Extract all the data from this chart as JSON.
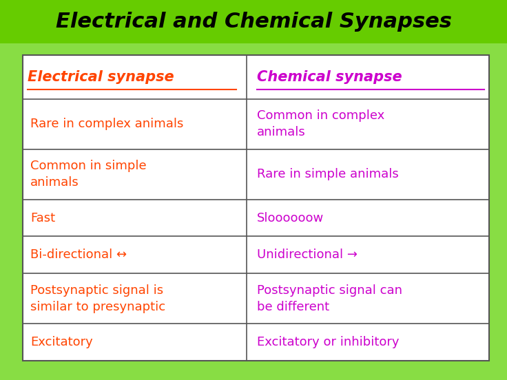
{
  "title": "Electrical and Chemical Synapses",
  "title_color": "#000000",
  "title_bg_color": "#66cc00",
  "title_fontsize": 22,
  "bg_color": "#88dd44",
  "table_bg_color": "#ffffff",
  "col1_header": "Electrical synapse",
  "col2_header": "Chemical synapse",
  "col1_color": "#ff4400",
  "col2_color": "#cc00cc",
  "header_fontsize": 15,
  "cell_fontsize": 13,
  "rows": [
    [
      "Rare in complex animals",
      "Common in complex\nanimals"
    ],
    [
      "Common in simple\nanimals",
      "Rare in simple animals"
    ],
    [
      "Fast",
      "Sloooooow"
    ],
    [
      "Bi-directional ↔",
      "Unidirectional →"
    ],
    [
      "Postsynaptic signal is\nsimilar to presynaptic",
      "Postsynaptic signal can\nbe different"
    ],
    [
      "Excitatory",
      "Excitatory or inhibitory"
    ]
  ],
  "row_height_ratios": [
    1.0,
    1.15,
    1.15,
    0.85,
    0.85,
    1.15,
    0.85
  ]
}
